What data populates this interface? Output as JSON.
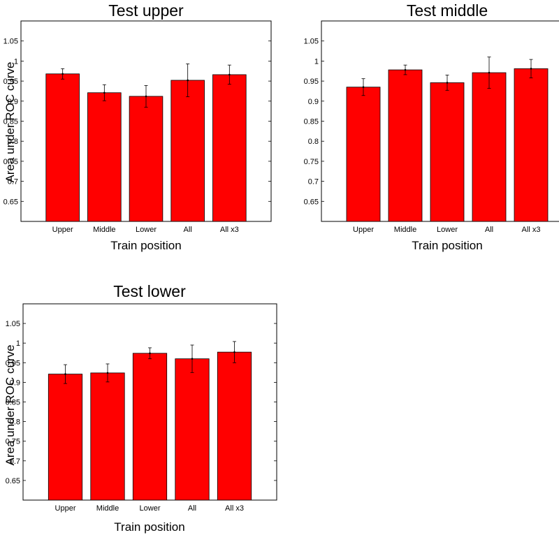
{
  "chart_data": [
    {
      "type": "bar",
      "title": "Test upper",
      "xlabel": "Train position",
      "ylabel": "Area under ROC curve",
      "categories": [
        "Upper",
        "Middle",
        "Lower",
        "All",
        "All x3"
      ],
      "values": [
        0.968,
        0.921,
        0.912,
        0.952,
        0.966
      ],
      "error": [
        0.013,
        0.02,
        0.027,
        0.041,
        0.024
      ],
      "ylim": [
        0.6,
        1.1
      ],
      "yticks": [
        "0.65",
        "0.7",
        "0.75",
        "0.8",
        "0.85",
        "0.9",
        "0.95",
        "1",
        "1.05"
      ],
      "bar_color": "#ff0000",
      "grid": false
    },
    {
      "type": "bar",
      "title": "Test middle",
      "xlabel": "Train position",
      "ylabel": "",
      "categories": [
        "Upper",
        "Middle",
        "Lower",
        "All",
        "All x3"
      ],
      "values": [
        0.935,
        0.978,
        0.946,
        0.971,
        0.981
      ],
      "error": [
        0.021,
        0.012,
        0.019,
        0.039,
        0.023
      ],
      "ylim": [
        0.6,
        1.1
      ],
      "yticks": [
        "0.65",
        "0.7",
        "0.75",
        "0.8",
        "0.85",
        "0.9",
        "0.95",
        "1",
        "1.05"
      ],
      "bar_color": "#ff0000",
      "grid": false
    },
    {
      "type": "bar",
      "title": "Test lower",
      "xlabel": "Train position",
      "ylabel": "Area under ROC curve",
      "categories": [
        "Upper",
        "Middle",
        "Lower",
        "All",
        "All x3"
      ],
      "values": [
        0.921,
        0.924,
        0.974,
        0.96,
        0.977
      ],
      "error": [
        0.024,
        0.023,
        0.014,
        0.035,
        0.027
      ],
      "ylim": [
        0.6,
        1.1
      ],
      "yticks": [
        "0.65",
        "0.7",
        "0.75",
        "0.8",
        "0.85",
        "0.9",
        "0.95",
        "1",
        "1.05"
      ],
      "bar_color": "#ff0000",
      "grid": false
    }
  ]
}
